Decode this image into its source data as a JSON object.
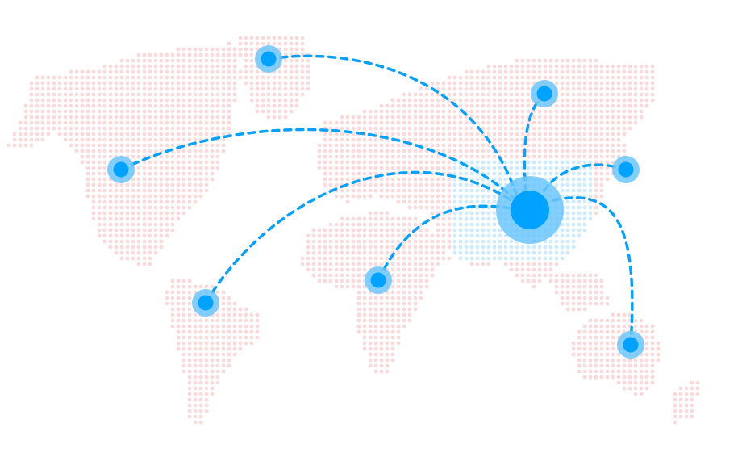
{
  "colors": {
    "background": "#ffffff",
    "land_dot": "#f9dada",
    "highlight_dot": "#cdebfd",
    "route_line": "#0aa0f7",
    "node_halo": "#6cc5fb",
    "node_core": "#00a2fe"
  }
}
